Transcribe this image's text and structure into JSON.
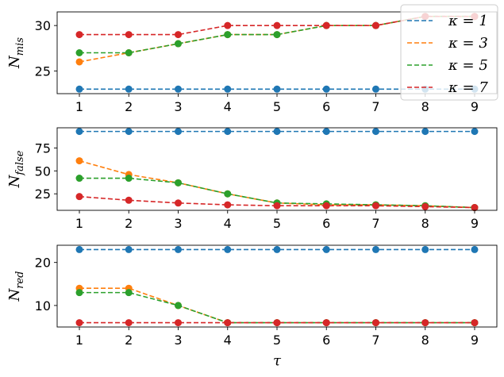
{
  "chart_data": [
    {
      "type": "line",
      "ylabel": "N_mis",
      "x": [
        1,
        2,
        3,
        4,
        5,
        6,
        7,
        8,
        9
      ],
      "ylim": [
        22.5,
        31.5
      ],
      "yticks": [
        25,
        30
      ],
      "xticks": [
        1,
        2,
        3,
        4,
        5,
        6,
        7,
        8,
        9
      ],
      "legend_position": "top-right",
      "series": [
        {
          "name": "κ = 1",
          "color": "#1f77b4",
          "values": [
            23,
            23,
            23,
            23,
            23,
            23,
            23,
            23,
            23
          ]
        },
        {
          "name": "κ = 3",
          "color": "#ff7f0e",
          "values": [
            26,
            27,
            28,
            29,
            29,
            30,
            30,
            31,
            31
          ]
        },
        {
          "name": "κ = 5",
          "color": "#2ca02c",
          "values": [
            27,
            27,
            28,
            29,
            29,
            30,
            30,
            31,
            31
          ]
        },
        {
          "name": "κ = 7",
          "color": "#d62728",
          "values": [
            29,
            29,
            29,
            30,
            30,
            30,
            30,
            31,
            31
          ]
        }
      ]
    },
    {
      "type": "line",
      "ylabel": "N_false",
      "x": [
        1,
        2,
        3,
        4,
        5,
        6,
        7,
        8,
        9
      ],
      "ylim": [
        7,
        97
      ],
      "yticks": [
        25,
        50,
        75
      ],
      "xticks": [
        1,
        2,
        3,
        4,
        5,
        6,
        7,
        8,
        9
      ],
      "series": [
        {
          "name": "κ = 1",
          "color": "#1f77b4",
          "values": [
            93,
            93,
            93,
            93,
            93,
            93,
            93,
            93,
            93
          ]
        },
        {
          "name": "κ = 3",
          "color": "#ff7f0e",
          "values": [
            61,
            46,
            37,
            25,
            15,
            13,
            13,
            12,
            10
          ]
        },
        {
          "name": "κ = 5",
          "color": "#2ca02c",
          "values": [
            42,
            42,
            37,
            25,
            15,
            14,
            13,
            12,
            10
          ]
        },
        {
          "name": "κ = 7",
          "color": "#d62728",
          "values": [
            22,
            18,
            15,
            13,
            12,
            12,
            12,
            11,
            10
          ]
        }
      ]
    },
    {
      "type": "line",
      "ylabel": "N_red",
      "xlabel": "τ",
      "x": [
        1,
        2,
        3,
        4,
        5,
        6,
        7,
        8,
        9
      ],
      "ylim": [
        5,
        24
      ],
      "yticks": [
        10,
        20
      ],
      "xticks": [
        1,
        2,
        3,
        4,
        5,
        6,
        7,
        8,
        9
      ],
      "series": [
        {
          "name": "κ = 1",
          "color": "#1f77b4",
          "values": [
            23,
            23,
            23,
            23,
            23,
            23,
            23,
            23,
            23
          ]
        },
        {
          "name": "κ = 3",
          "color": "#ff7f0e",
          "values": [
            14,
            14,
            10,
            6,
            6,
            6,
            6,
            6,
            6
          ]
        },
        {
          "name": "κ = 5",
          "color": "#2ca02c",
          "values": [
            13,
            13,
            10,
            6,
            6,
            6,
            6,
            6,
            6
          ]
        },
        {
          "name": "κ = 7",
          "color": "#d62728",
          "values": [
            6,
            6,
            6,
            6,
            6,
            6,
            6,
            6,
            6
          ]
        }
      ]
    }
  ]
}
